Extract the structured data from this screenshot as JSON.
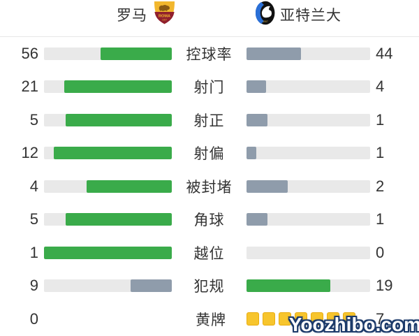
{
  "header": {
    "home": {
      "name": "罗马",
      "crest": "roma-crest"
    },
    "away": {
      "name": "亚特兰大",
      "crest": "atalanta-crest"
    }
  },
  "colors": {
    "green": "#3aab4a",
    "slate": "#8f9cab",
    "track": "#e9e9e9",
    "card_yellow": "#f7c52d",
    "card_border": "#e9ac0f",
    "text": "#333333",
    "watermark_outline": "#1c3a6a"
  },
  "stats": {
    "rows": [
      {
        "label": "控球率",
        "home": "56",
        "away": "44",
        "home_pct": 56,
        "away_pct": 44,
        "home_color": "green",
        "away_color": "slate",
        "type": "bar"
      },
      {
        "label": "射门",
        "home": "21",
        "away": "4",
        "home_pct": 84,
        "away_pct": 16,
        "home_color": "green",
        "away_color": "slate",
        "type": "bar"
      },
      {
        "label": "射正",
        "home": "5",
        "away": "1",
        "home_pct": 83.3,
        "away_pct": 16.7,
        "home_color": "green",
        "away_color": "slate",
        "type": "bar"
      },
      {
        "label": "射偏",
        "home": "12",
        "away": "1",
        "home_pct": 92.3,
        "away_pct": 7.7,
        "home_color": "green",
        "away_color": "slate",
        "type": "bar"
      },
      {
        "label": "被封堵",
        "home": "4",
        "away": "2",
        "home_pct": 66.7,
        "away_pct": 33.3,
        "home_color": "green",
        "away_color": "slate",
        "type": "bar"
      },
      {
        "label": "角球",
        "home": "5",
        "away": "1",
        "home_pct": 83.3,
        "away_pct": 16.7,
        "home_color": "green",
        "away_color": "slate",
        "type": "bar"
      },
      {
        "label": "越位",
        "home": "1",
        "away": "0",
        "home_pct": 100,
        "away_pct": 0,
        "home_color": "green",
        "away_color": "slate",
        "type": "bar"
      },
      {
        "label": "犯规",
        "home": "9",
        "away": "19",
        "home_pct": 32.1,
        "away_pct": 67.9,
        "home_color": "slate",
        "away_color": "green",
        "type": "bar"
      },
      {
        "label": "黄牌",
        "home": "0",
        "away": "7",
        "home_cards": 0,
        "away_cards": 7,
        "type": "cards"
      }
    ]
  },
  "watermark": {
    "text": "Yoozhibo.com"
  }
}
